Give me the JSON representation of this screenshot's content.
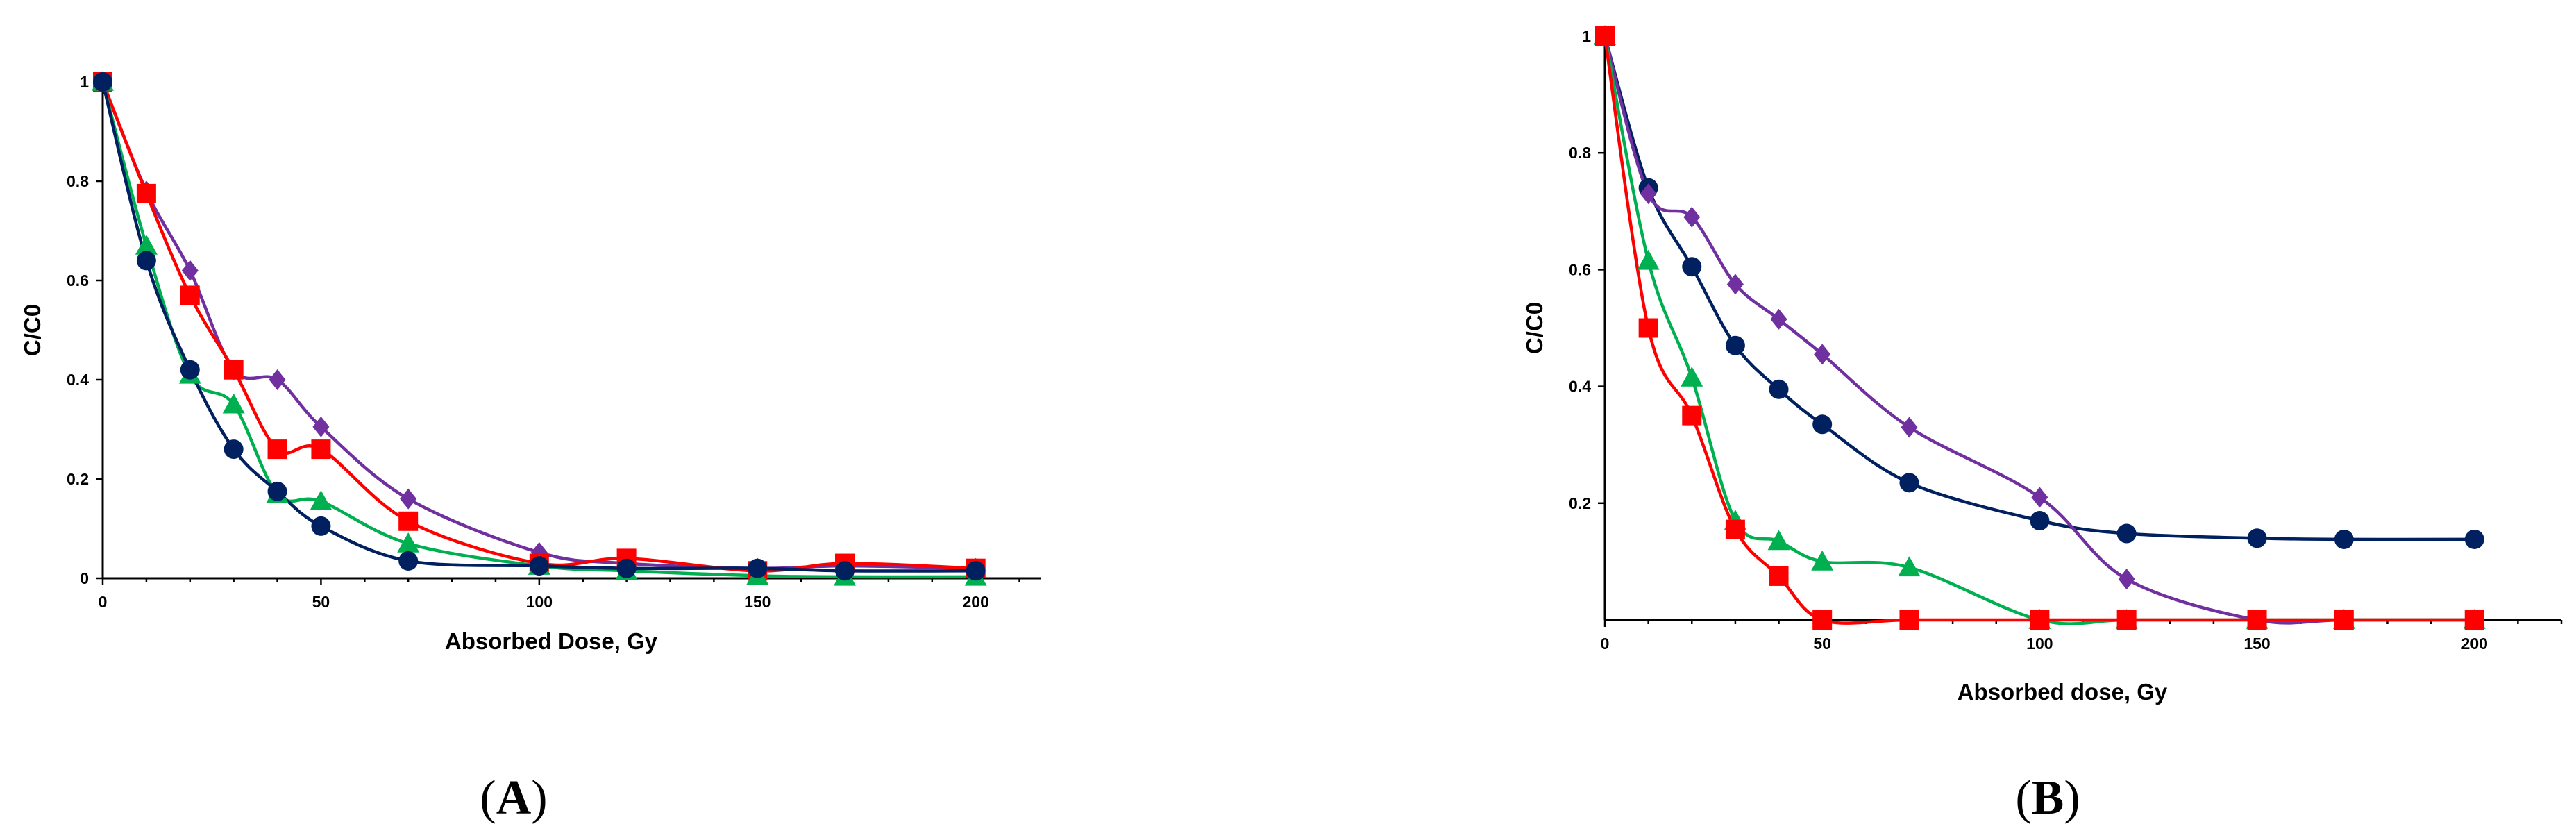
{
  "figure": {
    "panels": [
      "A",
      "B"
    ]
  },
  "chart_data": [
    {
      "id": "A",
      "type": "line",
      "panel_label": "A",
      "xlabel": "Absorbed Dose, Gy",
      "ylabel": "C/C0",
      "xlim": [
        0,
        215
      ],
      "ylim": [
        0,
        1
      ],
      "xticks": [
        0,
        50,
        100,
        150,
        200
      ],
      "yticks": [
        0,
        0.2,
        0.4,
        0.6,
        0.8,
        1
      ],
      "ytick_labels": [
        "0",
        "0.2",
        "0.4",
        "0.6",
        "0.8",
        "1"
      ],
      "grid": false,
      "legend": "none",
      "series": [
        {
          "color": "#7030a0",
          "marker": "diamond",
          "points": [
            [
              0,
              1.0
            ],
            [
              10,
              0.78
            ],
            [
              20,
              0.62
            ],
            [
              30,
              0.42
            ],
            [
              40,
              0.4
            ],
            [
              50,
              0.305
            ],
            [
              70,
              0.16
            ],
            [
              100,
              0.052
            ],
            [
              120,
              0.03
            ],
            [
              150,
              0.02
            ],
            [
              170,
              0.025
            ],
            [
              200,
              0.02
            ]
          ]
        },
        {
          "color": "#ff0000",
          "marker": "square",
          "points": [
            [
              0,
              1.0
            ],
            [
              10,
              0.775
            ],
            [
              20,
              0.57
            ],
            [
              30,
              0.42
            ],
            [
              40,
              0.26
            ],
            [
              50,
              0.26
            ],
            [
              70,
              0.115
            ],
            [
              100,
              0.03
            ],
            [
              120,
              0.04
            ],
            [
              150,
              0.015
            ],
            [
              170,
              0.03
            ],
            [
              200,
              0.02
            ]
          ]
        },
        {
          "color": "#00b050",
          "marker": "triangle",
          "points": [
            [
              0,
              1.0
            ],
            [
              10,
              0.67
            ],
            [
              20,
              0.41
            ],
            [
              30,
              0.35
            ],
            [
              40,
              0.17
            ],
            [
              50,
              0.155
            ],
            [
              70,
              0.07
            ],
            [
              100,
              0.025
            ],
            [
              120,
              0.015
            ],
            [
              150,
              0.005
            ],
            [
              170,
              0.003
            ],
            [
              200,
              0.003
            ]
          ]
        },
        {
          "color": "#002060",
          "marker": "circle",
          "points": [
            [
              0,
              1.0
            ],
            [
              10,
              0.64
            ],
            [
              20,
              0.42
            ],
            [
              30,
              0.26
            ],
            [
              40,
              0.175
            ],
            [
              50,
              0.105
            ],
            [
              70,
              0.035
            ],
            [
              100,
              0.025
            ],
            [
              120,
              0.02
            ],
            [
              150,
              0.02
            ],
            [
              170,
              0.015
            ],
            [
              200,
              0.015
            ]
          ]
        }
      ]
    },
    {
      "id": "B",
      "type": "line",
      "panel_label": "B",
      "xlabel": "Absorbed dose, Gy",
      "ylabel": "C/C0",
      "xlim": [
        0,
        220
      ],
      "ylim": [
        0,
        1
      ],
      "xticks": [
        0,
        50,
        100,
        150,
        200
      ],
      "yticks": [
        0.2,
        0.4,
        0.6,
        0.8,
        1
      ],
      "ytick_labels": [
        "0.2",
        "0.4",
        "0.6",
        "0.8",
        "1"
      ],
      "grid": false,
      "legend": "none",
      "series": [
        {
          "color": "#002060",
          "marker": "circle",
          "points": [
            [
              0,
              1.0
            ],
            [
              10,
              0.74
            ],
            [
              20,
              0.605
            ],
            [
              30,
              0.47
            ],
            [
              40,
              0.395
            ],
            [
              50,
              0.335
            ],
            [
              70,
              0.235
            ],
            [
              100,
              0.17
            ],
            [
              120,
              0.148
            ],
            [
              150,
              0.14
            ],
            [
              170,
              0.138
            ],
            [
              200,
              0.138
            ]
          ]
        },
        {
          "color": "#7030a0",
          "marker": "diamond",
          "points": [
            [
              0,
              1.0
            ],
            [
              10,
              0.73
            ],
            [
              20,
              0.69
            ],
            [
              30,
              0.575
            ],
            [
              40,
              0.515
            ],
            [
              50,
              0.455
            ],
            [
              70,
              0.33
            ],
            [
              100,
              0.21
            ],
            [
              120,
              0.07
            ],
            [
              150,
              0.0
            ],
            [
              170,
              0.0
            ],
            [
              200,
              0.0
            ]
          ]
        },
        {
          "color": "#00b050",
          "marker": "triangle",
          "points": [
            [
              0,
              1.0
            ],
            [
              10,
              0.615
            ],
            [
              20,
              0.415
            ],
            [
              30,
              0.17
            ],
            [
              40,
              0.135
            ],
            [
              50,
              0.1
            ],
            [
              70,
              0.09
            ],
            [
              100,
              0.0
            ],
            [
              120,
              0.0
            ],
            [
              150,
              0.0
            ],
            [
              170,
              0.0
            ],
            [
              200,
              0.0
            ]
          ]
        },
        {
          "color": "#ff0000",
          "marker": "square",
          "points": [
            [
              0,
              1.0
            ],
            [
              10,
              0.5
            ],
            [
              20,
              0.35
            ],
            [
              30,
              0.155
            ],
            [
              40,
              0.075
            ],
            [
              50,
              0.0
            ],
            [
              70,
              0.0
            ],
            [
              100,
              0.0
            ],
            [
              120,
              0.0
            ],
            [
              150,
              0.0
            ],
            [
              170,
              0.0
            ],
            [
              200,
              0.0
            ]
          ]
        }
      ]
    }
  ]
}
